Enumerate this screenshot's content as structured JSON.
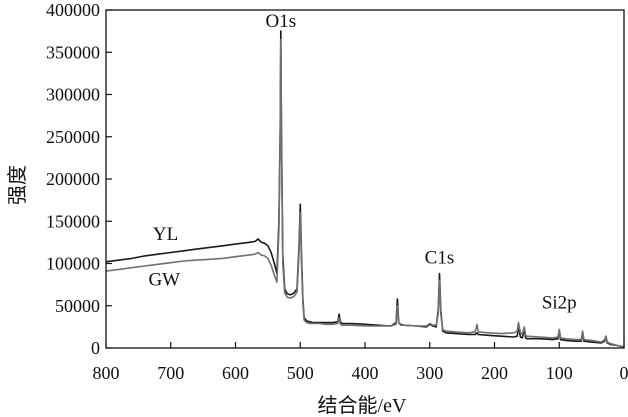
{
  "chart_data": {
    "type": "line",
    "title": "",
    "xlabel": "结合能/eV",
    "ylabel": "强度",
    "xlim": [
      800,
      0
    ],
    "ylim": [
      0,
      400000
    ],
    "x_ticks": [
      800,
      700,
      600,
      500,
      400,
      300,
      200,
      100,
      0
    ],
    "y_ticks": [
      0,
      50000,
      100000,
      150000,
      200000,
      250000,
      300000,
      350000,
      400000
    ],
    "x_reversed": true,
    "grid": false,
    "legend": "inline labels",
    "annotations": [
      {
        "text": "O1s",
        "x": 530,
        "y": 380000
      },
      {
        "text": "C1s",
        "x": 285,
        "y": 100000
      },
      {
        "text": "Si2p",
        "x": 100,
        "y": 47000
      }
    ],
    "series": [
      {
        "name": "YL",
        "label_at": {
          "x": 708,
          "y": 128000
        },
        "color": "#1a1a1a",
        "x": [
          800,
          780,
          760,
          740,
          720,
          700,
          680,
          660,
          640,
          620,
          600,
          580,
          570,
          565,
          560,
          555,
          550,
          545,
          540,
          536,
          533,
          531,
          530,
          529,
          527,
          524,
          520,
          515,
          510,
          505,
          502,
          500,
          498,
          496,
          494,
          490,
          485,
          480,
          470,
          460,
          450,
          442,
          440,
          438,
          435,
          420,
          400,
          380,
          360,
          352,
          350,
          348,
          345,
          340,
          320,
          305,
          300,
          295,
          290,
          287,
          285,
          283,
          280,
          275,
          260,
          240,
          230,
          227,
          225,
          210,
          190,
          170,
          165,
          163,
          160,
          157,
          154,
          152,
          150,
          130,
          110,
          102,
          100,
          98,
          90,
          75,
          66,
          64,
          62,
          50,
          35,
          30,
          28,
          26,
          20,
          10,
          0
        ],
        "values": [
          102000,
          104000,
          106000,
          109000,
          111000,
          113000,
          115000,
          117000,
          119000,
          121000,
          123000,
          125000,
          126000,
          129000,
          125000,
          124000,
          121000,
          113000,
          100000,
          88000,
          150000,
          260000,
          375000,
          250000,
          110000,
          70000,
          64000,
          63000,
          65000,
          70000,
          120000,
          170000,
          110000,
          60000,
          36000,
          32000,
          31000,
          30000,
          30000,
          30000,
          30000,
          31000,
          40000,
          31000,
          29000,
          29000,
          28000,
          27000,
          26000,
          30000,
          58000,
          30000,
          28000,
          27000,
          26000,
          25000,
          28000,
          26000,
          25000,
          45000,
          88000,
          45000,
          20000,
          18000,
          17000,
          16000,
          16000,
          18000,
          16000,
          15000,
          14000,
          13000,
          14000,
          26000,
          13000,
          12000,
          22000,
          12000,
          11000,
          11000,
          10000,
          11000,
          21000,
          10000,
          9000,
          8000,
          8000,
          19000,
          8000,
          7000,
          6000,
          8000,
          14000,
          6000,
          4000,
          3000,
          1000
        ]
      },
      {
        "name": "GW",
        "label_at": {
          "x": 710,
          "y": 74000
        },
        "color": "#707070",
        "x": [
          800,
          780,
          760,
          740,
          720,
          700,
          680,
          660,
          640,
          620,
          600,
          580,
          570,
          565,
          560,
          555,
          550,
          545,
          540,
          536,
          533,
          531,
          530,
          529,
          527,
          524,
          520,
          515,
          510,
          505,
          502,
          500,
          498,
          496,
          494,
          490,
          485,
          480,
          470,
          460,
          450,
          442,
          440,
          438,
          435,
          420,
          400,
          380,
          360,
          352,
          350,
          348,
          345,
          340,
          320,
          305,
          300,
          295,
          290,
          287,
          285,
          283,
          280,
          275,
          260,
          240,
          230,
          227,
          225,
          210,
          190,
          170,
          165,
          163,
          160,
          157,
          154,
          152,
          150,
          130,
          110,
          102,
          100,
          98,
          90,
          75,
          66,
          64,
          62,
          50,
          35,
          30,
          28,
          26,
          20,
          10,
          0
        ],
        "values": [
          91000,
          93000,
          95000,
          97000,
          99000,
          101000,
          103000,
          104000,
          105000,
          106000,
          108000,
          110000,
          111000,
          113000,
          110000,
          109000,
          106000,
          98000,
          86000,
          78000,
          140000,
          250000,
          365000,
          240000,
          100000,
          65000,
          60000,
          59000,
          61000,
          66000,
          112000,
          160000,
          100000,
          56000,
          33000,
          30000,
          29000,
          29000,
          29000,
          28000,
          28000,
          29000,
          36000,
          28000,
          27000,
          27000,
          26000,
          26000,
          26000,
          28000,
          50000,
          30000,
          27000,
          27000,
          26000,
          26000,
          29000,
          27000,
          27000,
          40000,
          80000,
          40000,
          22000,
          20000,
          19000,
          18000,
          19000,
          28000,
          19000,
          18000,
          17000,
          18000,
          20000,
          30000,
          18000,
          16000,
          25000,
          15000,
          14000,
          13000,
          12000,
          13000,
          22000,
          12000,
          11000,
          10000,
          10000,
          20000,
          10000,
          9000,
          7000,
          10000,
          14000,
          7000,
          5000,
          3000,
          1000
        ]
      }
    ]
  }
}
